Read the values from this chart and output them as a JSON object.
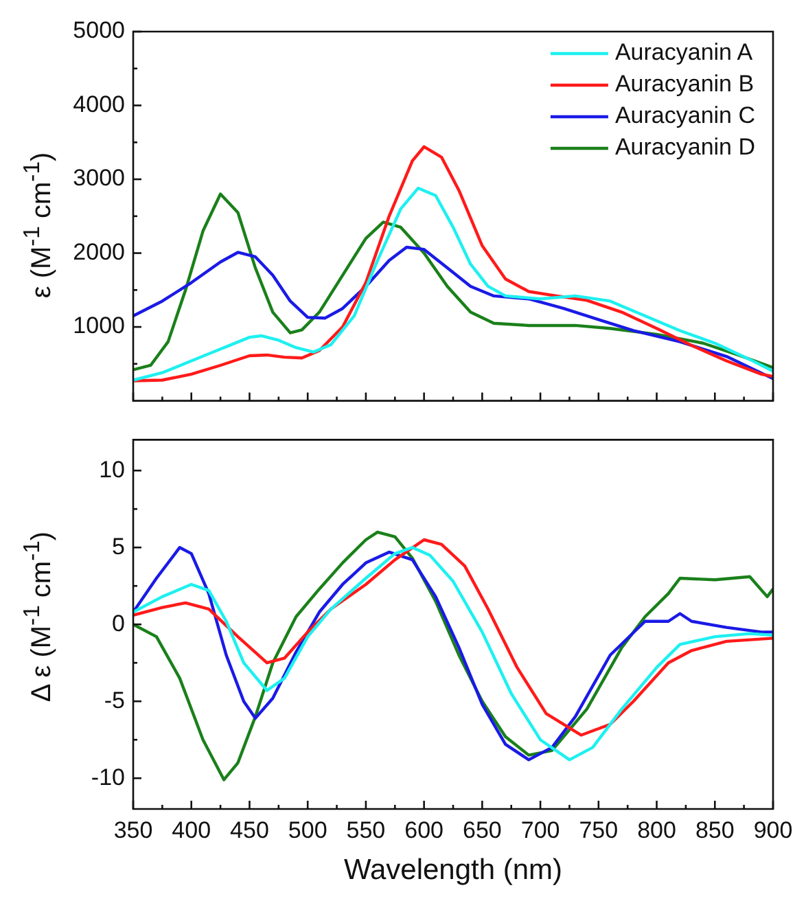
{
  "chart_data": [
    {
      "type": "line",
      "ylabel": "ε  (M$^{-1}$ cm$^{-1}$)",
      "xlim": [
        350,
        900
      ],
      "ylim": [
        0,
        5000
      ],
      "xticks": [
        350,
        {
          "value": 375,
          "label": null
        },
        400,
        {
          "value": 425,
          "label": null
        },
        450,
        {
          "value": 475,
          "label": null
        },
        500,
        {
          "value": 525,
          "label": null
        },
        550,
        {
          "value": 575,
          "label": null
        },
        600,
        {
          "value": 625,
          "label": null
        },
        650,
        {
          "value": 675,
          "label": null
        },
        700,
        {
          "value": 725,
          "label": null
        },
        750,
        {
          "value": 775,
          "label": null
        },
        800,
        {
          "value": 825,
          "label": null
        },
        850,
        {
          "value": 875,
          "label": null
        },
        900
      ],
      "yticks": [
        {
          "value": 500,
          "label": null
        },
        1000,
        {
          "value": 1500,
          "label": null
        },
        2000,
        {
          "value": 2500,
          "label": null
        },
        3000,
        {
          "value": 3500,
          "label": null
        },
        4000,
        {
          "value": 4500,
          "label": null
        },
        5000
      ],
      "tick_labels": "y",
      "legend": "top right",
      "grid": false,
      "marker": "none",
      "series": [
        {
          "name": "Auracyanin A",
          "color": "#1ef0f0",
          "x": [
            350,
            375,
            400,
            425,
            450,
            460,
            475,
            490,
            505,
            520,
            540,
            560,
            580,
            595,
            610,
            625,
            640,
            655,
            670,
            700,
            730,
            760,
            790,
            820,
            850,
            880,
            900
          ],
          "values": [
            280,
            380,
            540,
            700,
            860,
            880,
            820,
            720,
            660,
            760,
            1150,
            1900,
            2600,
            2880,
            2780,
            2350,
            1850,
            1550,
            1420,
            1380,
            1420,
            1350,
            1150,
            950,
            780,
            560,
            400
          ]
        },
        {
          "name": "Auracyanin B",
          "color": "#ff1a1a",
          "x": [
            350,
            375,
            400,
            425,
            450,
            465,
            480,
            495,
            510,
            530,
            550,
            570,
            590,
            600,
            615,
            630,
            650,
            670,
            690,
            710,
            740,
            770,
            800,
            830,
            860,
            890,
            900
          ],
          "values": [
            270,
            280,
            360,
            480,
            610,
            620,
            590,
            580,
            680,
            1000,
            1600,
            2500,
            3250,
            3440,
            3300,
            2850,
            2100,
            1650,
            1480,
            1430,
            1360,
            1200,
            980,
            750,
            540,
            360,
            330
          ]
        },
        {
          "name": "Auracyanin C",
          "color": "#1a1ae6",
          "x": [
            350,
            375,
            400,
            425,
            440,
            455,
            470,
            485,
            500,
            515,
            530,
            550,
            570,
            585,
            600,
            620,
            640,
            660,
            690,
            720,
            750,
            780,
            820,
            860,
            900
          ],
          "values": [
            1150,
            1350,
            1600,
            1880,
            2010,
            1950,
            1700,
            1350,
            1130,
            1120,
            1250,
            1550,
            1900,
            2080,
            2050,
            1800,
            1550,
            1420,
            1380,
            1250,
            1100,
            950,
            800,
            600,
            300
          ]
        },
        {
          "name": "Auracyanin D",
          "color": "#1a801a",
          "x": [
            350,
            365,
            380,
            395,
            410,
            425,
            440,
            455,
            470,
            485,
            495,
            510,
            530,
            550,
            565,
            580,
            600,
            620,
            640,
            660,
            690,
            730,
            760,
            800,
            840,
            870,
            900
          ],
          "values": [
            420,
            480,
            800,
            1500,
            2300,
            2800,
            2550,
            1800,
            1200,
            920,
            960,
            1200,
            1700,
            2200,
            2420,
            2350,
            2000,
            1550,
            1200,
            1050,
            1020,
            1020,
            980,
            900,
            780,
            620,
            450
          ]
        }
      ]
    },
    {
      "type": "line",
      "ylabel": "Δ ε  (M$^{-1}$ cm$^{-1}$)",
      "xlabel": "Wavelength (nm)",
      "xlim": [
        350,
        900
      ],
      "ylim": [
        -12,
        12
      ],
      "xticks": [
        350,
        {
          "value": 375,
          "label": null
        },
        400,
        {
          "value": 425,
          "label": null
        },
        450,
        {
          "value": 475,
          "label": null
        },
        500,
        {
          "value": 525,
          "label": null
        },
        550,
        {
          "value": 575,
          "label": null
        },
        600,
        {
          "value": 625,
          "label": null
        },
        650,
        {
          "value": 675,
          "label": null
        },
        700,
        {
          "value": 725,
          "label": null
        },
        750,
        {
          "value": 775,
          "label": null
        },
        800,
        {
          "value": 825,
          "label": null
        },
        850,
        {
          "value": 875,
          "label": null
        },
        900
      ],
      "yticks": [
        -10,
        {
          "value": -7.5,
          "label": null
        },
        -5,
        {
          "value": -2.5,
          "label": null
        },
        0,
        {
          "value": 2.5,
          "label": null
        },
        5,
        {
          "value": 7.5,
          "label": null
        },
        10
      ],
      "grid": false,
      "marker": "none",
      "series": [
        {
          "color": "#1ef0f0",
          "x": [
            350,
            375,
            400,
            415,
            430,
            445,
            465,
            480,
            500,
            520,
            550,
            575,
            590,
            605,
            625,
            650,
            675,
            700,
            725,
            745,
            770,
            800,
            820,
            850,
            880,
            900
          ],
          "values": [
            0.8,
            1.8,
            2.6,
            2.2,
            0.2,
            -2.5,
            -4.3,
            -3.5,
            -0.8,
            1.0,
            3.0,
            4.6,
            5.0,
            4.5,
            2.8,
            -0.5,
            -4.5,
            -7.5,
            -8.8,
            -8.0,
            -5.5,
            -2.8,
            -1.3,
            -0.8,
            -0.6,
            -0.7
          ]
        },
        {
          "color": "#ff1a1a",
          "x": [
            350,
            375,
            395,
            415,
            440,
            465,
            480,
            500,
            520,
            550,
            575,
            600,
            615,
            635,
            655,
            680,
            705,
            735,
            760,
            780,
            810,
            830,
            860,
            900
          ],
          "values": [
            0.6,
            1.1,
            1.4,
            1.0,
            -0.8,
            -2.5,
            -2.2,
            -0.5,
            1.0,
            2.6,
            4.2,
            5.5,
            5.2,
            3.8,
            1.0,
            -2.8,
            -5.8,
            -7.2,
            -6.5,
            -5.0,
            -2.5,
            -1.7,
            -1.1,
            -0.9
          ]
        },
        {
          "color": "#1a1ae6",
          "x": [
            350,
            370,
            390,
            400,
            415,
            430,
            445,
            455,
            470,
            490,
            510,
            530,
            550,
            570,
            590,
            610,
            630,
            650,
            670,
            690,
            710,
            730,
            760,
            790,
            810,
            820,
            830,
            860,
            890,
            900
          ],
          "values": [
            0.8,
            3.0,
            5.0,
            4.6,
            2.0,
            -2.0,
            -5.0,
            -6.1,
            -4.8,
            -1.8,
            0.8,
            2.6,
            4.0,
            4.7,
            4.2,
            1.8,
            -1.5,
            -5.2,
            -7.8,
            -8.8,
            -8.0,
            -6.0,
            -2.0,
            0.2,
            0.2,
            0.7,
            0.2,
            -0.2,
            -0.5,
            -0.5
          ]
        },
        {
          "color": "#1a801a",
          "x": [
            350,
            370,
            390,
            410,
            428,
            440,
            455,
            470,
            490,
            510,
            530,
            550,
            560,
            575,
            590,
            610,
            630,
            650,
            670,
            690,
            710,
            740,
            770,
            790,
            810,
            820,
            850,
            880,
            895,
            900
          ],
          "values": [
            0.0,
            -0.8,
            -3.5,
            -7.5,
            -10.1,
            -9.0,
            -6.0,
            -2.5,
            0.5,
            2.3,
            4.0,
            5.5,
            6.0,
            5.7,
            4.3,
            1.5,
            -2.0,
            -5.0,
            -7.3,
            -8.5,
            -8.2,
            -5.5,
            -1.5,
            0.5,
            2.0,
            3.0,
            2.9,
            3.1,
            1.8,
            2.3
          ]
        }
      ]
    }
  ]
}
